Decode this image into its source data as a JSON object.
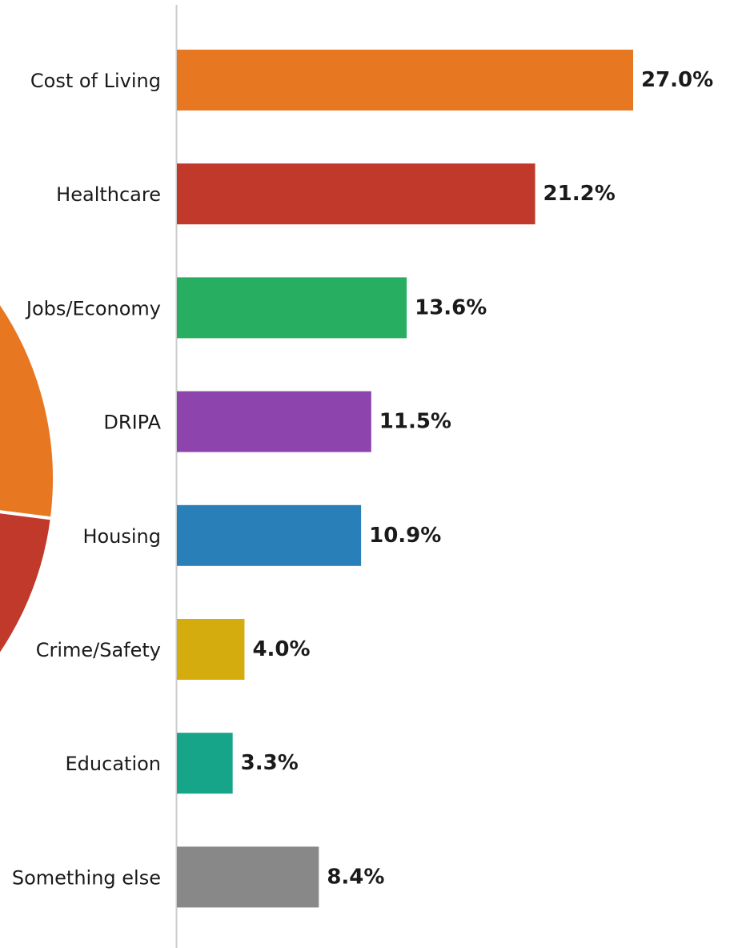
{
  "chart_data": [
    {
      "type": "bar",
      "orientation": "horizontal",
      "categories": [
        "Cost of Living",
        "Healthcare",
        "Jobs/Economy",
        "DRIPA",
        "Housing",
        "Crime/Safety",
        "Education",
        "Something else"
      ],
      "values": [
        27.0,
        21.2,
        13.6,
        11.5,
        10.9,
        4.0,
        3.3,
        8.4
      ],
      "value_labels": [
        "27.0%",
        "21.2%",
        "13.6%",
        "11.5%",
        "10.9%",
        "4.0%",
        "3.3%",
        "8.4%"
      ],
      "colors": [
        "#e87722",
        "#c0392b",
        "#27ae60",
        "#8e44ad",
        "#2980b9",
        "#d4ac0d",
        "#17a589",
        "#888888"
      ],
      "xlim": [
        0,
        27.0
      ],
      "grid": false,
      "value_unit": "%"
    },
    {
      "type": "pie",
      "partial": true,
      "visible_slices": [
        {
          "category": "Cost of Living",
          "color": "#e87722"
        },
        {
          "category": "Healthcare",
          "color": "#c0392b"
        }
      ]
    }
  ]
}
